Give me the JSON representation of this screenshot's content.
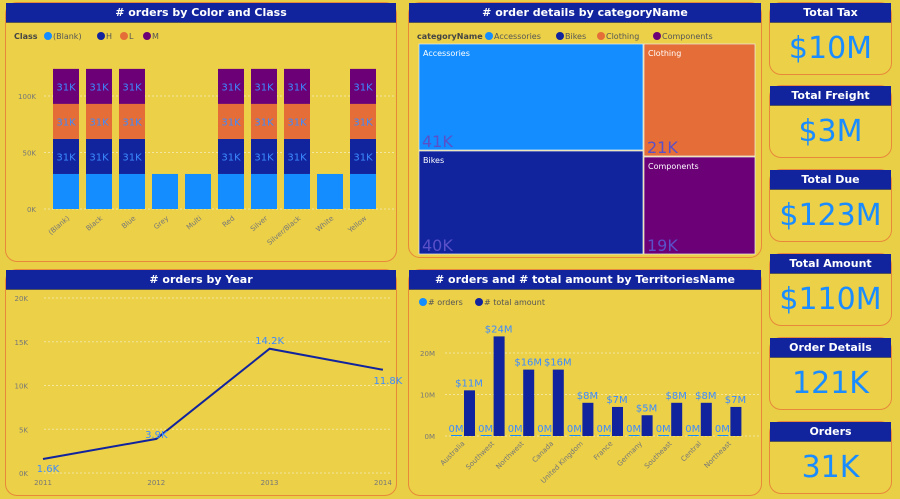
{
  "colors": {
    "background": "#e9cf45",
    "header": "#11249e",
    "blank": "#138dff",
    "H": "#11249e",
    "L": "#e56d37",
    "M": "#6b0077",
    "label": "#3d8bff"
  },
  "cards": [
    {
      "title": "Total Tax",
      "value": "$10M"
    },
    {
      "title": "Total Freight",
      "value": "$3M"
    },
    {
      "title": "Total Due",
      "value": "$123M"
    },
    {
      "title": "Total Amount",
      "value": "$110M"
    },
    {
      "title": "Order Details",
      "value": "121K"
    },
    {
      "title": "Orders",
      "value": "31K"
    }
  ],
  "chart_data": [
    {
      "type": "bar",
      "stacked": true,
      "title": "# orders by Color and Class",
      "legend_title": "Class",
      "legend_position": "top-left",
      "categories": [
        "(Blank)",
        "Black",
        "Blue",
        "Grey",
        "Multi",
        "Red",
        "Silver",
        "Silver/Black",
        "White",
        "Yellow"
      ],
      "series": [
        {
          "name": "(Blank)",
          "color": "#138dff",
          "values": [
            31,
            31,
            31,
            31,
            31,
            31,
            31,
            31,
            31,
            31
          ]
        },
        {
          "name": "H",
          "color": "#11249e",
          "values": [
            31,
            31,
            31,
            0,
            0,
            31,
            31,
            31,
            0,
            31
          ]
        },
        {
          "name": "L",
          "color": "#e56d37",
          "values": [
            31,
            31,
            31,
            0,
            0,
            31,
            31,
            31,
            0,
            31
          ]
        },
        {
          "name": "M",
          "color": "#6b0077",
          "values": [
            31,
            31,
            31,
            0,
            0,
            31,
            31,
            31,
            0,
            31
          ]
        }
      ],
      "data_label": "31K",
      "unit": "K",
      "yticks": [
        "0K",
        "50K",
        "100K"
      ],
      "ylim": [
        0,
        130
      ],
      "grid": true
    },
    {
      "type": "treemap",
      "title": "# order details by categoryName",
      "legend_title": "categoryName",
      "legend_position": "top-left",
      "items": [
        {
          "name": "Accessories",
          "value": 41,
          "label": "41K",
          "color": "#138dff"
        },
        {
          "name": "Bikes",
          "value": 40,
          "label": "40K",
          "color": "#11249e"
        },
        {
          "name": "Clothing",
          "value": 21,
          "label": "21K",
          "color": "#e56d37"
        },
        {
          "name": "Components",
          "value": 19,
          "label": "19K",
          "color": "#6b0077"
        }
      ]
    },
    {
      "type": "line",
      "title": "# orders by Year",
      "x": [
        "2011",
        "2012",
        "2013",
        "2014"
      ],
      "values": [
        1.6,
        3.9,
        14.2,
        11.8
      ],
      "labels": [
        "1.6K",
        "3.9K",
        "14.2K",
        "11.8K"
      ],
      "unit": "K",
      "yticks": [
        "0K",
        "5K",
        "10K",
        "15K",
        "20K"
      ],
      "ylim": [
        0,
        20
      ],
      "grid": true,
      "color": "#11249e"
    },
    {
      "type": "bar",
      "title": "# orders and # total amount by TerritoriesName",
      "legend_position": "top-left",
      "categories": [
        "Australia",
        "Southwest",
        "Northwest",
        "Canada",
        "United Kingdom",
        "France",
        "Germany",
        "Southeast",
        "Central",
        "Northeast"
      ],
      "series": [
        {
          "name": "# orders",
          "color": "#138dff",
          "values": [
            0,
            0,
            0,
            0,
            0,
            0,
            0,
            0,
            0,
            0
          ],
          "labels": [
            "0M",
            "0M",
            "0M",
            "0M",
            "0M",
            "0M",
            "0M",
            "0M",
            "0M",
            "0M"
          ]
        },
        {
          "name": "# total amount",
          "color": "#11249e",
          "values": [
            11,
            24,
            16,
            16,
            8,
            7,
            5,
            8,
            8,
            7
          ],
          "labels": [
            "$11M",
            "$24M",
            "$16M",
            "$16M",
            "$8M",
            "$7M",
            "$5M",
            "$8M",
            "$8M",
            "$7M"
          ]
        }
      ],
      "unit": "M",
      "yticks": [
        "0M",
        "10M",
        "20M"
      ],
      "ylim": [
        0,
        26
      ],
      "grid": true
    }
  ]
}
